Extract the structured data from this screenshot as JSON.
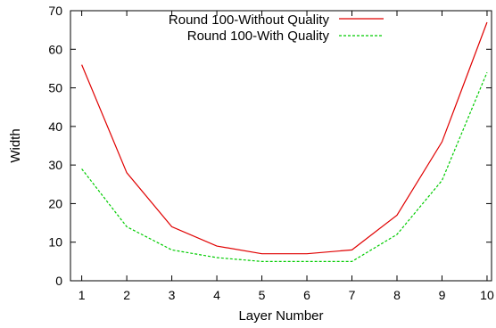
{
  "chart_data": {
    "type": "line",
    "title": "",
    "xlabel": "Layer Number",
    "ylabel": "Width",
    "x": [
      1,
      2,
      3,
      4,
      5,
      6,
      7,
      8,
      9,
      10
    ],
    "xlim": [
      0.75,
      10.1
    ],
    "ylim": [
      0,
      70
    ],
    "xticks": [
      "1",
      "2",
      "3",
      "4",
      "5",
      "6",
      "7",
      "8",
      "9",
      "10"
    ],
    "yticks": [
      "0",
      "10",
      "20",
      "30",
      "40",
      "50",
      "60",
      "70"
    ],
    "grid": false,
    "legend_position": "top-center",
    "series": [
      {
        "name": "Round 100-Without Quality",
        "color": "#e00000",
        "style": "solid",
        "values": [
          56,
          28,
          14,
          9,
          7,
          7,
          8,
          17,
          36,
          67
        ]
      },
      {
        "name": "Round 100-With Quality",
        "color": "#00cc00",
        "style": "dashed",
        "values": [
          29,
          14,
          8,
          6,
          5,
          5,
          5,
          12,
          26,
          54
        ]
      }
    ]
  }
}
